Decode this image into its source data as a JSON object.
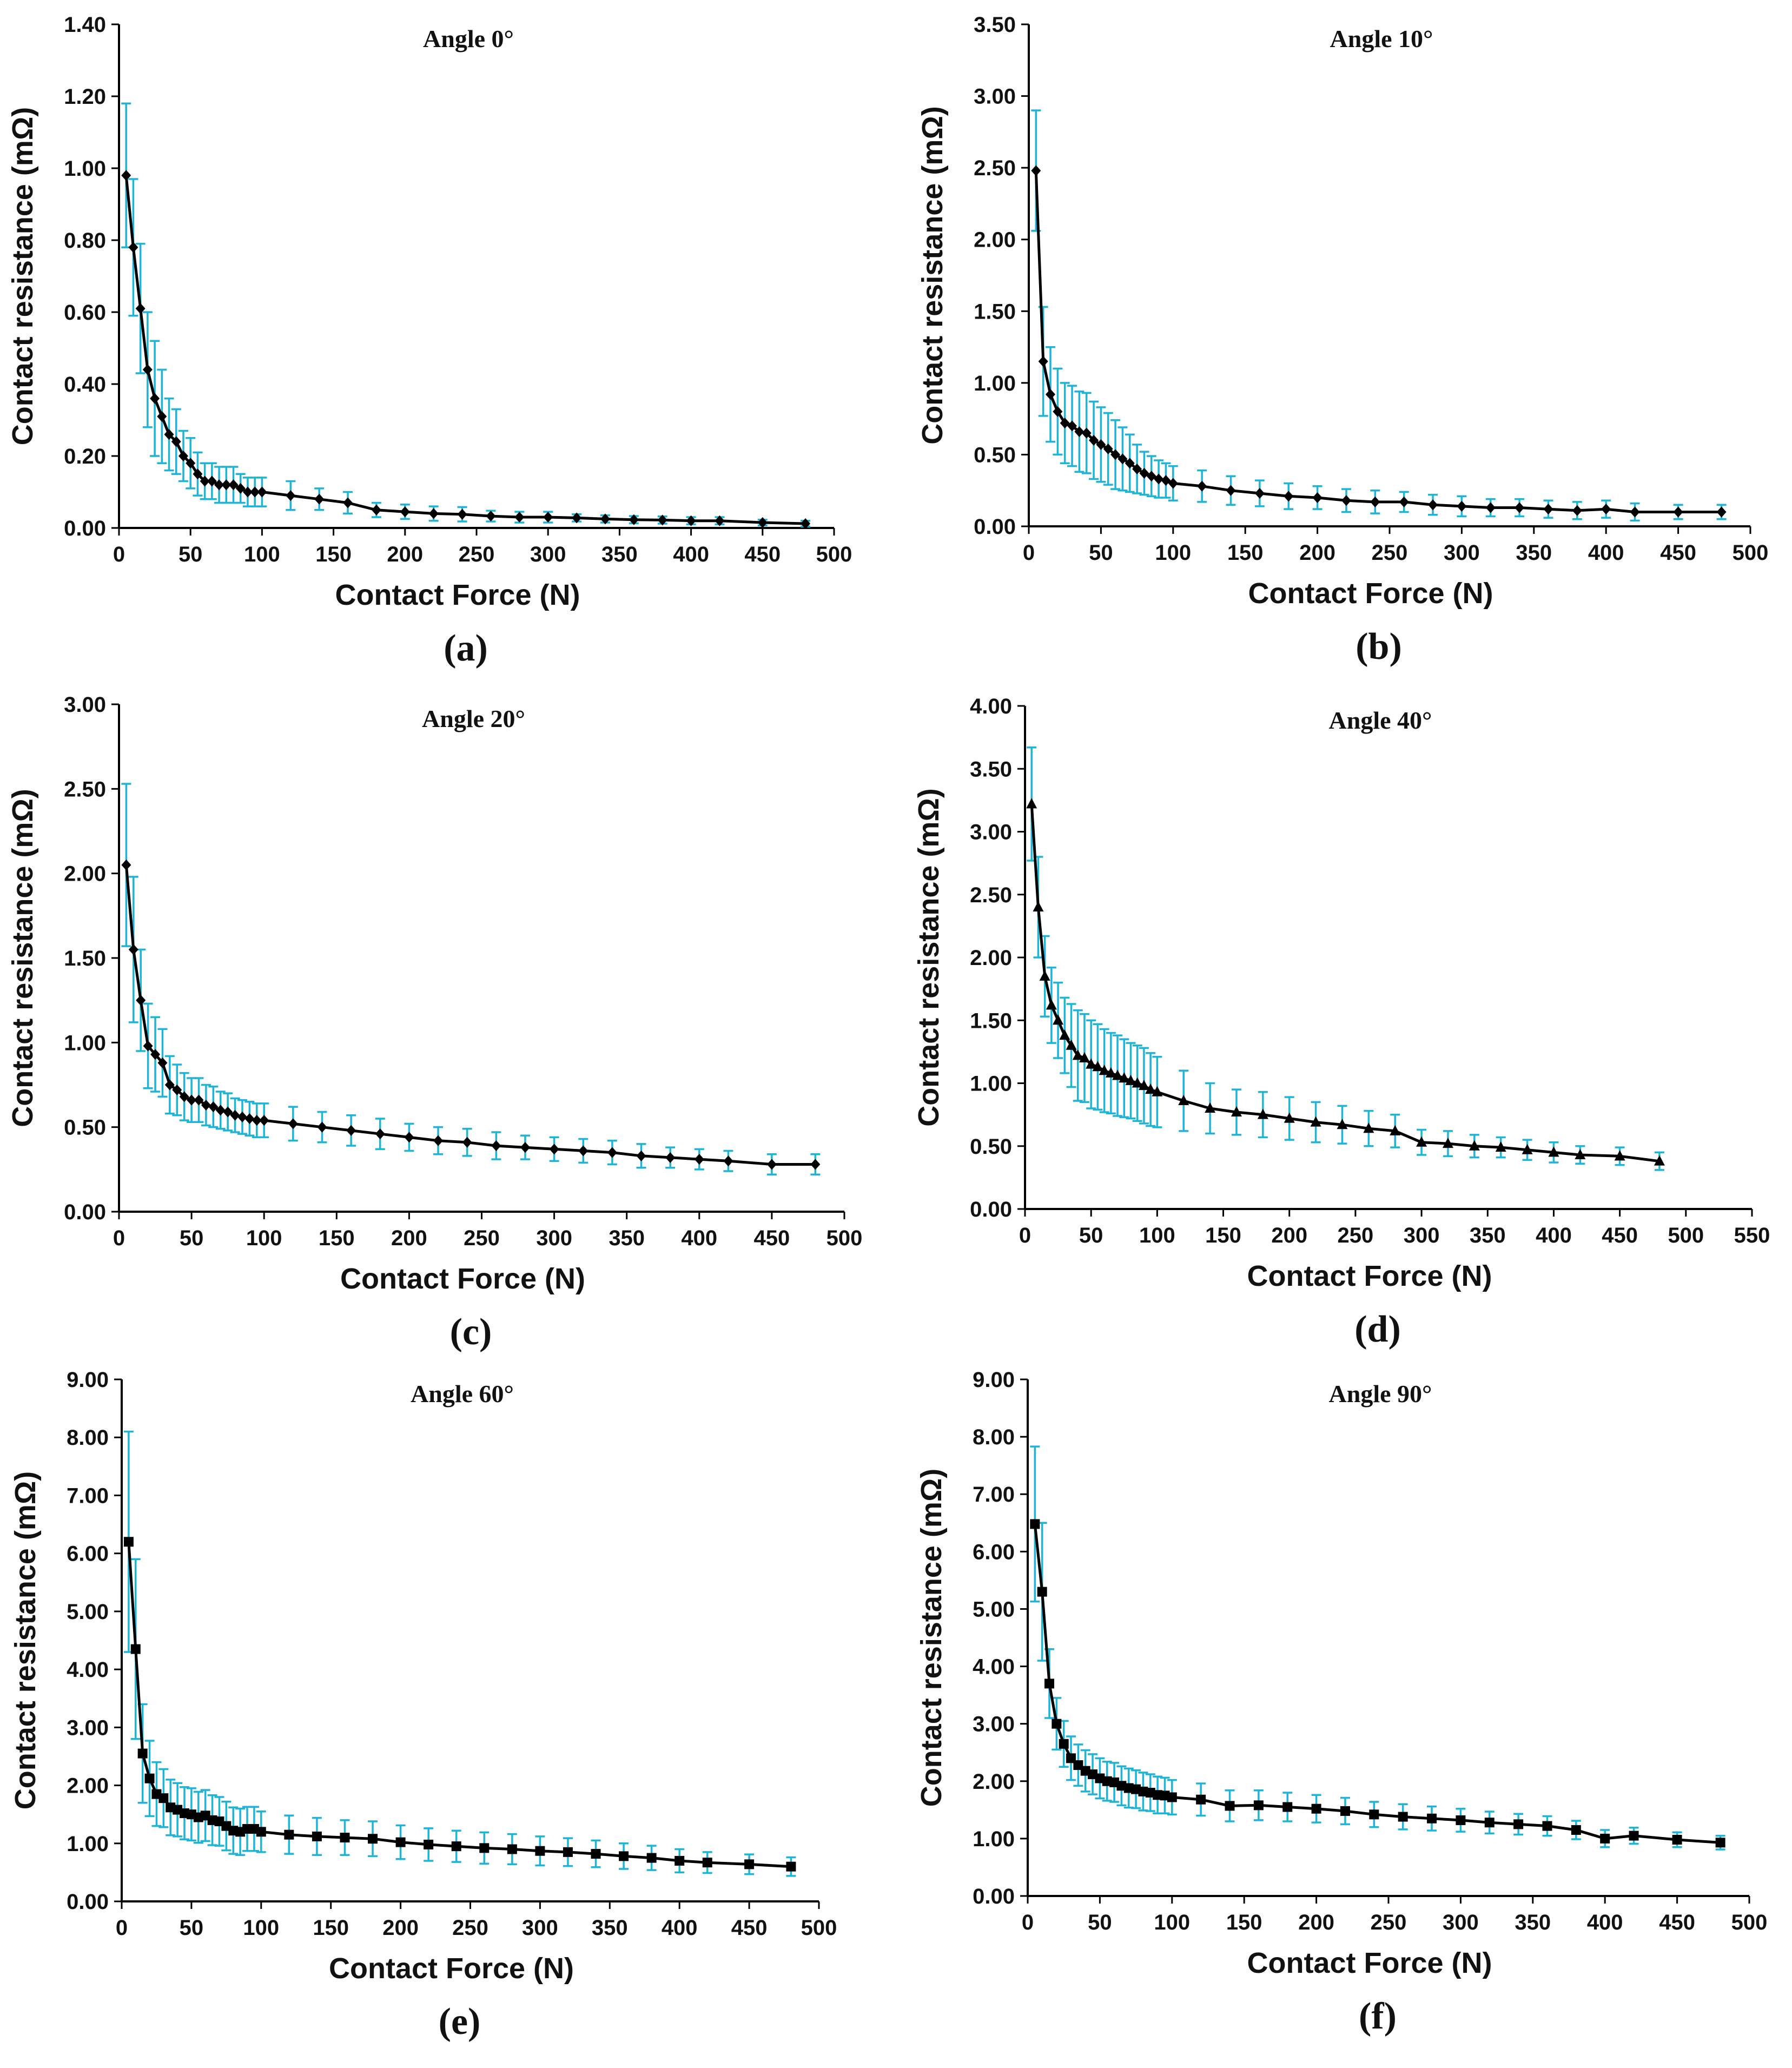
{
  "colors": {
    "line": "#000000",
    "error_bar": "#1EB4D7",
    "axis": "#000000",
    "background": "#ffffff"
  },
  "chart_data": [
    {
      "id": "a",
      "type": "line",
      "title": "Angle 0°",
      "panel_label": "a",
      "xlabel": "Contact Force (N)",
      "ylabel": "Contact resistance (mΩ)",
      "xlim": [
        0,
        500
      ],
      "ylim": [
        0,
        1.4
      ],
      "xticks": [
        0,
        50,
        100,
        150,
        200,
        250,
        300,
        350,
        400,
        450,
        500
      ],
      "yticks": [
        "0.00",
        "0.20",
        "0.40",
        "0.60",
        "0.80",
        "1.00",
        "1.20",
        "1.40"
      ],
      "marker": "diamond",
      "grid": false,
      "series": [
        {
          "name": "Angle 0°",
          "x": [
            5,
            10,
            15,
            20,
            25,
            30,
            35,
            40,
            45,
            50,
            55,
            60,
            65,
            70,
            75,
            80,
            85,
            90,
            95,
            100,
            120,
            140,
            160,
            180,
            200,
            220,
            240,
            260,
            280,
            300,
            320,
            340,
            360,
            380,
            400,
            420,
            450,
            480
          ],
          "y": [
            0.98,
            0.78,
            0.61,
            0.44,
            0.36,
            0.31,
            0.26,
            0.24,
            0.2,
            0.18,
            0.15,
            0.13,
            0.13,
            0.12,
            0.12,
            0.12,
            0.11,
            0.1,
            0.1,
            0.1,
            0.09,
            0.08,
            0.07,
            0.05,
            0.045,
            0.04,
            0.038,
            0.033,
            0.03,
            0.03,
            0.028,
            0.025,
            0.023,
            0.022,
            0.02,
            0.02,
            0.015,
            0.012
          ],
          "err": [
            0.2,
            0.19,
            0.18,
            0.16,
            0.16,
            0.13,
            0.1,
            0.09,
            0.07,
            0.07,
            0.06,
            0.05,
            0.05,
            0.05,
            0.05,
            0.05,
            0.04,
            0.04,
            0.04,
            0.04,
            0.04,
            0.03,
            0.03,
            0.02,
            0.02,
            0.02,
            0.02,
            0.015,
            0.015,
            0.015,
            0.01,
            0.01,
            0.01,
            0.01,
            0.01,
            0.01,
            0.008,
            0.008
          ]
        }
      ]
    },
    {
      "id": "b",
      "type": "line",
      "title": "Angle 10°",
      "panel_label": "b",
      "xlabel": "Contact Force (N)",
      "ylabel": "Contact resistance (mΩ)",
      "xlim": [
        0,
        500
      ],
      "ylim": [
        0,
        3.5
      ],
      "xticks": [
        0,
        50,
        100,
        150,
        200,
        250,
        300,
        350,
        400,
        450,
        500
      ],
      "yticks": [
        "0.00",
        "0.50",
        "1.00",
        "1.50",
        "2.00",
        "2.50",
        "3.00",
        "3.50"
      ],
      "marker": "diamond",
      "grid": false,
      "series": [
        {
          "name": "Angle 10°",
          "x": [
            5,
            10,
            15,
            20,
            25,
            30,
            35,
            40,
            45,
            50,
            55,
            60,
            65,
            70,
            75,
            80,
            85,
            90,
            95,
            100,
            120,
            140,
            160,
            180,
            200,
            220,
            240,
            260,
            280,
            300,
            320,
            340,
            360,
            380,
            400,
            420,
            450,
            480
          ],
          "y": [
            2.48,
            1.15,
            0.92,
            0.8,
            0.72,
            0.7,
            0.66,
            0.65,
            0.6,
            0.57,
            0.54,
            0.5,
            0.47,
            0.44,
            0.4,
            0.37,
            0.35,
            0.33,
            0.32,
            0.3,
            0.28,
            0.25,
            0.23,
            0.21,
            0.2,
            0.18,
            0.17,
            0.17,
            0.15,
            0.14,
            0.13,
            0.13,
            0.12,
            0.11,
            0.12,
            0.1,
            0.1,
            0.1
          ],
          "err": [
            0.42,
            0.38,
            0.33,
            0.3,
            0.28,
            0.28,
            0.28,
            0.28,
            0.27,
            0.26,
            0.25,
            0.24,
            0.22,
            0.2,
            0.17,
            0.15,
            0.14,
            0.13,
            0.12,
            0.12,
            0.11,
            0.1,
            0.09,
            0.09,
            0.08,
            0.08,
            0.08,
            0.07,
            0.07,
            0.07,
            0.06,
            0.06,
            0.06,
            0.06,
            0.06,
            0.06,
            0.05,
            0.05
          ]
        }
      ]
    },
    {
      "id": "c",
      "type": "line",
      "title": "Angle 20°",
      "panel_label": "c",
      "xlabel": "Contact Force (N)",
      "ylabel": "Contact resistance (mΩ)",
      "xlim": [
        0,
        500
      ],
      "ylim": [
        0,
        3.0
      ],
      "xticks": [
        0,
        50,
        100,
        150,
        200,
        250,
        300,
        350,
        400,
        450,
        500
      ],
      "yticks": [
        "0.00",
        "0.50",
        "1.00",
        "1.50",
        "2.00",
        "2.50",
        "3.00"
      ],
      "marker": "diamond",
      "grid": false,
      "series": [
        {
          "name": "Angle 20°",
          "x": [
            5,
            10,
            15,
            20,
            25,
            30,
            35,
            40,
            45,
            50,
            55,
            60,
            65,
            70,
            75,
            80,
            85,
            90,
            95,
            100,
            120,
            140,
            160,
            180,
            200,
            220,
            240,
            260,
            280,
            300,
            320,
            340,
            360,
            380,
            400,
            420,
            450,
            480
          ],
          "y": [
            2.05,
            1.55,
            1.25,
            0.98,
            0.93,
            0.88,
            0.75,
            0.72,
            0.68,
            0.66,
            0.66,
            0.63,
            0.62,
            0.6,
            0.59,
            0.57,
            0.56,
            0.55,
            0.54,
            0.54,
            0.52,
            0.5,
            0.48,
            0.46,
            0.44,
            0.42,
            0.41,
            0.39,
            0.38,
            0.37,
            0.36,
            0.35,
            0.33,
            0.32,
            0.31,
            0.3,
            0.28,
            0.28
          ],
          "err": [
            0.48,
            0.43,
            0.3,
            0.25,
            0.22,
            0.2,
            0.17,
            0.15,
            0.14,
            0.13,
            0.13,
            0.12,
            0.12,
            0.11,
            0.11,
            0.1,
            0.1,
            0.1,
            0.1,
            0.1,
            0.1,
            0.09,
            0.09,
            0.09,
            0.08,
            0.08,
            0.08,
            0.08,
            0.07,
            0.07,
            0.07,
            0.07,
            0.07,
            0.06,
            0.06,
            0.06,
            0.06,
            0.06
          ]
        }
      ]
    },
    {
      "id": "d",
      "type": "line",
      "title": "Angle 40°",
      "panel_label": "d",
      "xlabel": "Contact Force (N)",
      "ylabel": "Contact resistance (mΩ)",
      "xlim": [
        0,
        550
      ],
      "ylim": [
        0,
        4.0
      ],
      "xticks": [
        0,
        50,
        100,
        150,
        200,
        250,
        300,
        350,
        400,
        450,
        500,
        550
      ],
      "yticks": [
        "0.00",
        "0.50",
        "1.00",
        "1.50",
        "2.00",
        "2.50",
        "3.00",
        "3.50",
        "4.00"
      ],
      "marker": "triangle",
      "grid": false,
      "series": [
        {
          "name": "Angle 40°",
          "x": [
            5,
            10,
            15,
            20,
            25,
            30,
            35,
            40,
            45,
            50,
            55,
            60,
            65,
            70,
            75,
            80,
            85,
            90,
            95,
            100,
            120,
            140,
            160,
            180,
            200,
            220,
            240,
            260,
            280,
            300,
            320,
            340,
            360,
            380,
            400,
            420,
            450,
            480
          ],
          "y": [
            3.22,
            2.4,
            1.85,
            1.62,
            1.5,
            1.38,
            1.3,
            1.22,
            1.2,
            1.15,
            1.13,
            1.1,
            1.08,
            1.06,
            1.04,
            1.02,
            1.0,
            0.98,
            0.95,
            0.93,
            0.86,
            0.8,
            0.77,
            0.75,
            0.72,
            0.69,
            0.67,
            0.64,
            0.62,
            0.53,
            0.52,
            0.5,
            0.49,
            0.47,
            0.45,
            0.43,
            0.42,
            0.38
          ],
          "err": [
            0.45,
            0.4,
            0.32,
            0.3,
            0.3,
            0.3,
            0.33,
            0.36,
            0.35,
            0.35,
            0.34,
            0.33,
            0.32,
            0.32,
            0.31,
            0.3,
            0.3,
            0.3,
            0.29,
            0.28,
            0.24,
            0.2,
            0.18,
            0.18,
            0.17,
            0.16,
            0.15,
            0.14,
            0.13,
            0.1,
            0.1,
            0.09,
            0.08,
            0.08,
            0.08,
            0.07,
            0.07,
            0.07
          ]
        }
      ]
    },
    {
      "id": "e",
      "type": "line",
      "title": "Angle 60°",
      "panel_label": "e",
      "xlabel": "Contact Force (N)",
      "ylabel": "Contact resistance (mΩ)",
      "xlim": [
        0,
        500
      ],
      "ylim": [
        0,
        9.0
      ],
      "xticks": [
        0,
        50,
        100,
        150,
        200,
        250,
        300,
        350,
        400,
        450,
        500
      ],
      "yticks": [
        "0.00",
        "1.00",
        "2.00",
        "3.00",
        "4.00",
        "5.00",
        "6.00",
        "7.00",
        "8.00",
        "9.00"
      ],
      "marker": "square",
      "grid": false,
      "series": [
        {
          "name": "Angle 60°",
          "x": [
            5,
            10,
            15,
            20,
            25,
            30,
            35,
            40,
            45,
            50,
            55,
            60,
            65,
            70,
            75,
            80,
            85,
            90,
            95,
            100,
            120,
            140,
            160,
            180,
            200,
            220,
            240,
            260,
            280,
            300,
            320,
            340,
            360,
            380,
            400,
            420,
            450,
            480
          ],
          "y": [
            6.2,
            4.35,
            2.55,
            2.12,
            1.85,
            1.78,
            1.62,
            1.58,
            1.52,
            1.5,
            1.45,
            1.48,
            1.4,
            1.38,
            1.3,
            1.22,
            1.2,
            1.25,
            1.25,
            1.2,
            1.15,
            1.12,
            1.1,
            1.08,
            1.02,
            0.98,
            0.95,
            0.92,
            0.9,
            0.87,
            0.85,
            0.82,
            0.78,
            0.75,
            0.7,
            0.67,
            0.64,
            0.6
          ],
          "err": [
            1.9,
            1.55,
            0.85,
            0.65,
            0.55,
            0.5,
            0.48,
            0.46,
            0.45,
            0.45,
            0.44,
            0.44,
            0.43,
            0.42,
            0.42,
            0.4,
            0.4,
            0.38,
            0.38,
            0.35,
            0.33,
            0.32,
            0.3,
            0.3,
            0.29,
            0.28,
            0.27,
            0.27,
            0.26,
            0.25,
            0.24,
            0.23,
            0.22,
            0.21,
            0.2,
            0.18,
            0.17,
            0.16
          ]
        }
      ]
    },
    {
      "id": "f",
      "type": "line",
      "title": "Angle 90°",
      "panel_label": "f",
      "xlabel": "Contact Force (N)",
      "ylabel": "Contact resistance (mΩ)",
      "xlim": [
        0,
        500
      ],
      "ylim": [
        0,
        9.0
      ],
      "xticks": [
        0,
        50,
        100,
        150,
        200,
        250,
        300,
        350,
        400,
        450,
        500
      ],
      "yticks": [
        "0.00",
        "1.00",
        "2.00",
        "3.00",
        "4.00",
        "5.00",
        "6.00",
        "7.00",
        "8.00",
        "9.00"
      ],
      "marker": "square",
      "grid": false,
      "series": [
        {
          "name": "Angle 90°",
          "x": [
            5,
            10,
            15,
            20,
            25,
            30,
            35,
            40,
            45,
            50,
            55,
            60,
            65,
            70,
            75,
            80,
            85,
            90,
            95,
            100,
            120,
            140,
            160,
            180,
            200,
            220,
            240,
            260,
            280,
            300,
            320,
            340,
            360,
            380,
            400,
            420,
            450,
            480
          ],
          "y": [
            6.48,
            5.3,
            3.7,
            3.0,
            2.65,
            2.4,
            2.28,
            2.18,
            2.12,
            2.05,
            2.0,
            1.98,
            1.92,
            1.88,
            1.86,
            1.82,
            1.8,
            1.76,
            1.75,
            1.72,
            1.68,
            1.57,
            1.58,
            1.55,
            1.52,
            1.48,
            1.42,
            1.38,
            1.35,
            1.32,
            1.28,
            1.25,
            1.22,
            1.15,
            1.0,
            1.05,
            0.98,
            0.93
          ],
          "err": [
            1.35,
            1.2,
            0.6,
            0.45,
            0.4,
            0.38,
            0.36,
            0.36,
            0.35,
            0.35,
            0.34,
            0.34,
            0.34,
            0.34,
            0.33,
            0.33,
            0.32,
            0.32,
            0.31,
            0.3,
            0.28,
            0.27,
            0.26,
            0.25,
            0.24,
            0.23,
            0.22,
            0.22,
            0.21,
            0.2,
            0.19,
            0.18,
            0.17,
            0.16,
            0.15,
            0.14,
            0.13,
            0.12
          ]
        }
      ]
    }
  ]
}
